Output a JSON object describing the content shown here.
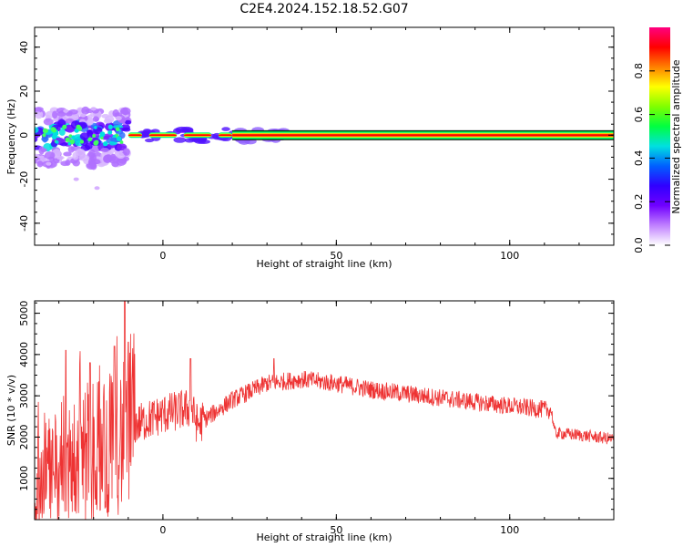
{
  "title": "C2E4.2024.152.18.52.G07",
  "chart_data": [
    {
      "type": "heatmap",
      "xlabel": "Height of straight line (km)",
      "ylabel": "Frequency (Hz)",
      "xlim": [
        -37,
        130
      ],
      "ylim": [
        -50,
        49
      ],
      "xticks": [
        0,
        50,
        100
      ],
      "yticks": [
        -40,
        -20,
        0,
        20,
        40
      ],
      "colorbar": {
        "label": "Normalized spectral amplitude",
        "range": [
          0,
          1
        ],
        "ticks": [
          "0.0",
          "0.2",
          "0.4",
          "0.6",
          "0.8"
        ],
        "colormap": [
          "#ffffff",
          "#c080ff",
          "#7000ff",
          "#3000ff",
          "#0060ff",
          "#00e0e0",
          "#00ff40",
          "#80ff00",
          "#ffff00",
          "#ff8000",
          "#ff0000",
          "#ff0080"
        ]
      },
      "features": {
        "main_line_frequency_hz": 0,
        "strong_band_from_km": 20,
        "noisy_region_km": [
          -37,
          -10
        ],
        "noisy_freq_range_hz": [
          -25,
          14
        ]
      }
    },
    {
      "type": "line",
      "xlabel": "Height of straight line (km)",
      "ylabel": "SNR (10 * v/v)",
      "xlim": [
        -37,
        130
      ],
      "ylim": [
        0,
        5300
      ],
      "xticks": [
        0,
        50,
        100
      ],
      "yticks": [
        1000,
        2000,
        3000,
        4000,
        5000
      ],
      "color": "#ee3333",
      "trend_points": [
        {
          "x": -37,
          "y": 900
        },
        {
          "x": -30,
          "y": 1300
        },
        {
          "x": -20,
          "y": 1700
        },
        {
          "x": -12,
          "y": 2000
        },
        {
          "x": -8,
          "y": 2300
        },
        {
          "x": 0,
          "y": 2550
        },
        {
          "x": 8,
          "y": 2700
        },
        {
          "x": 10,
          "y": 2300
        },
        {
          "x": 20,
          "y": 2900
        },
        {
          "x": 30,
          "y": 3300
        },
        {
          "x": 40,
          "y": 3400
        },
        {
          "x": 50,
          "y": 3300
        },
        {
          "x": 60,
          "y": 3150
        },
        {
          "x": 70,
          "y": 3050
        },
        {
          "x": 80,
          "y": 2950
        },
        {
          "x": 90,
          "y": 2850
        },
        {
          "x": 100,
          "y": 2750
        },
        {
          "x": 112,
          "y": 2650
        },
        {
          "x": 113,
          "y": 2100
        },
        {
          "x": 120,
          "y": 2050
        },
        {
          "x": 130,
          "y": 1950
        }
      ],
      "spikes": [
        {
          "x": -28,
          "y": 4100
        },
        {
          "x": -21,
          "y": 3800
        },
        {
          "x": -14,
          "y": 4200
        },
        {
          "x": -11,
          "y": 5300
        },
        {
          "x": -10,
          "y": 4300
        },
        {
          "x": 8,
          "y": 3900
        },
        {
          "x": 32,
          "y": 3900
        }
      ]
    }
  ]
}
